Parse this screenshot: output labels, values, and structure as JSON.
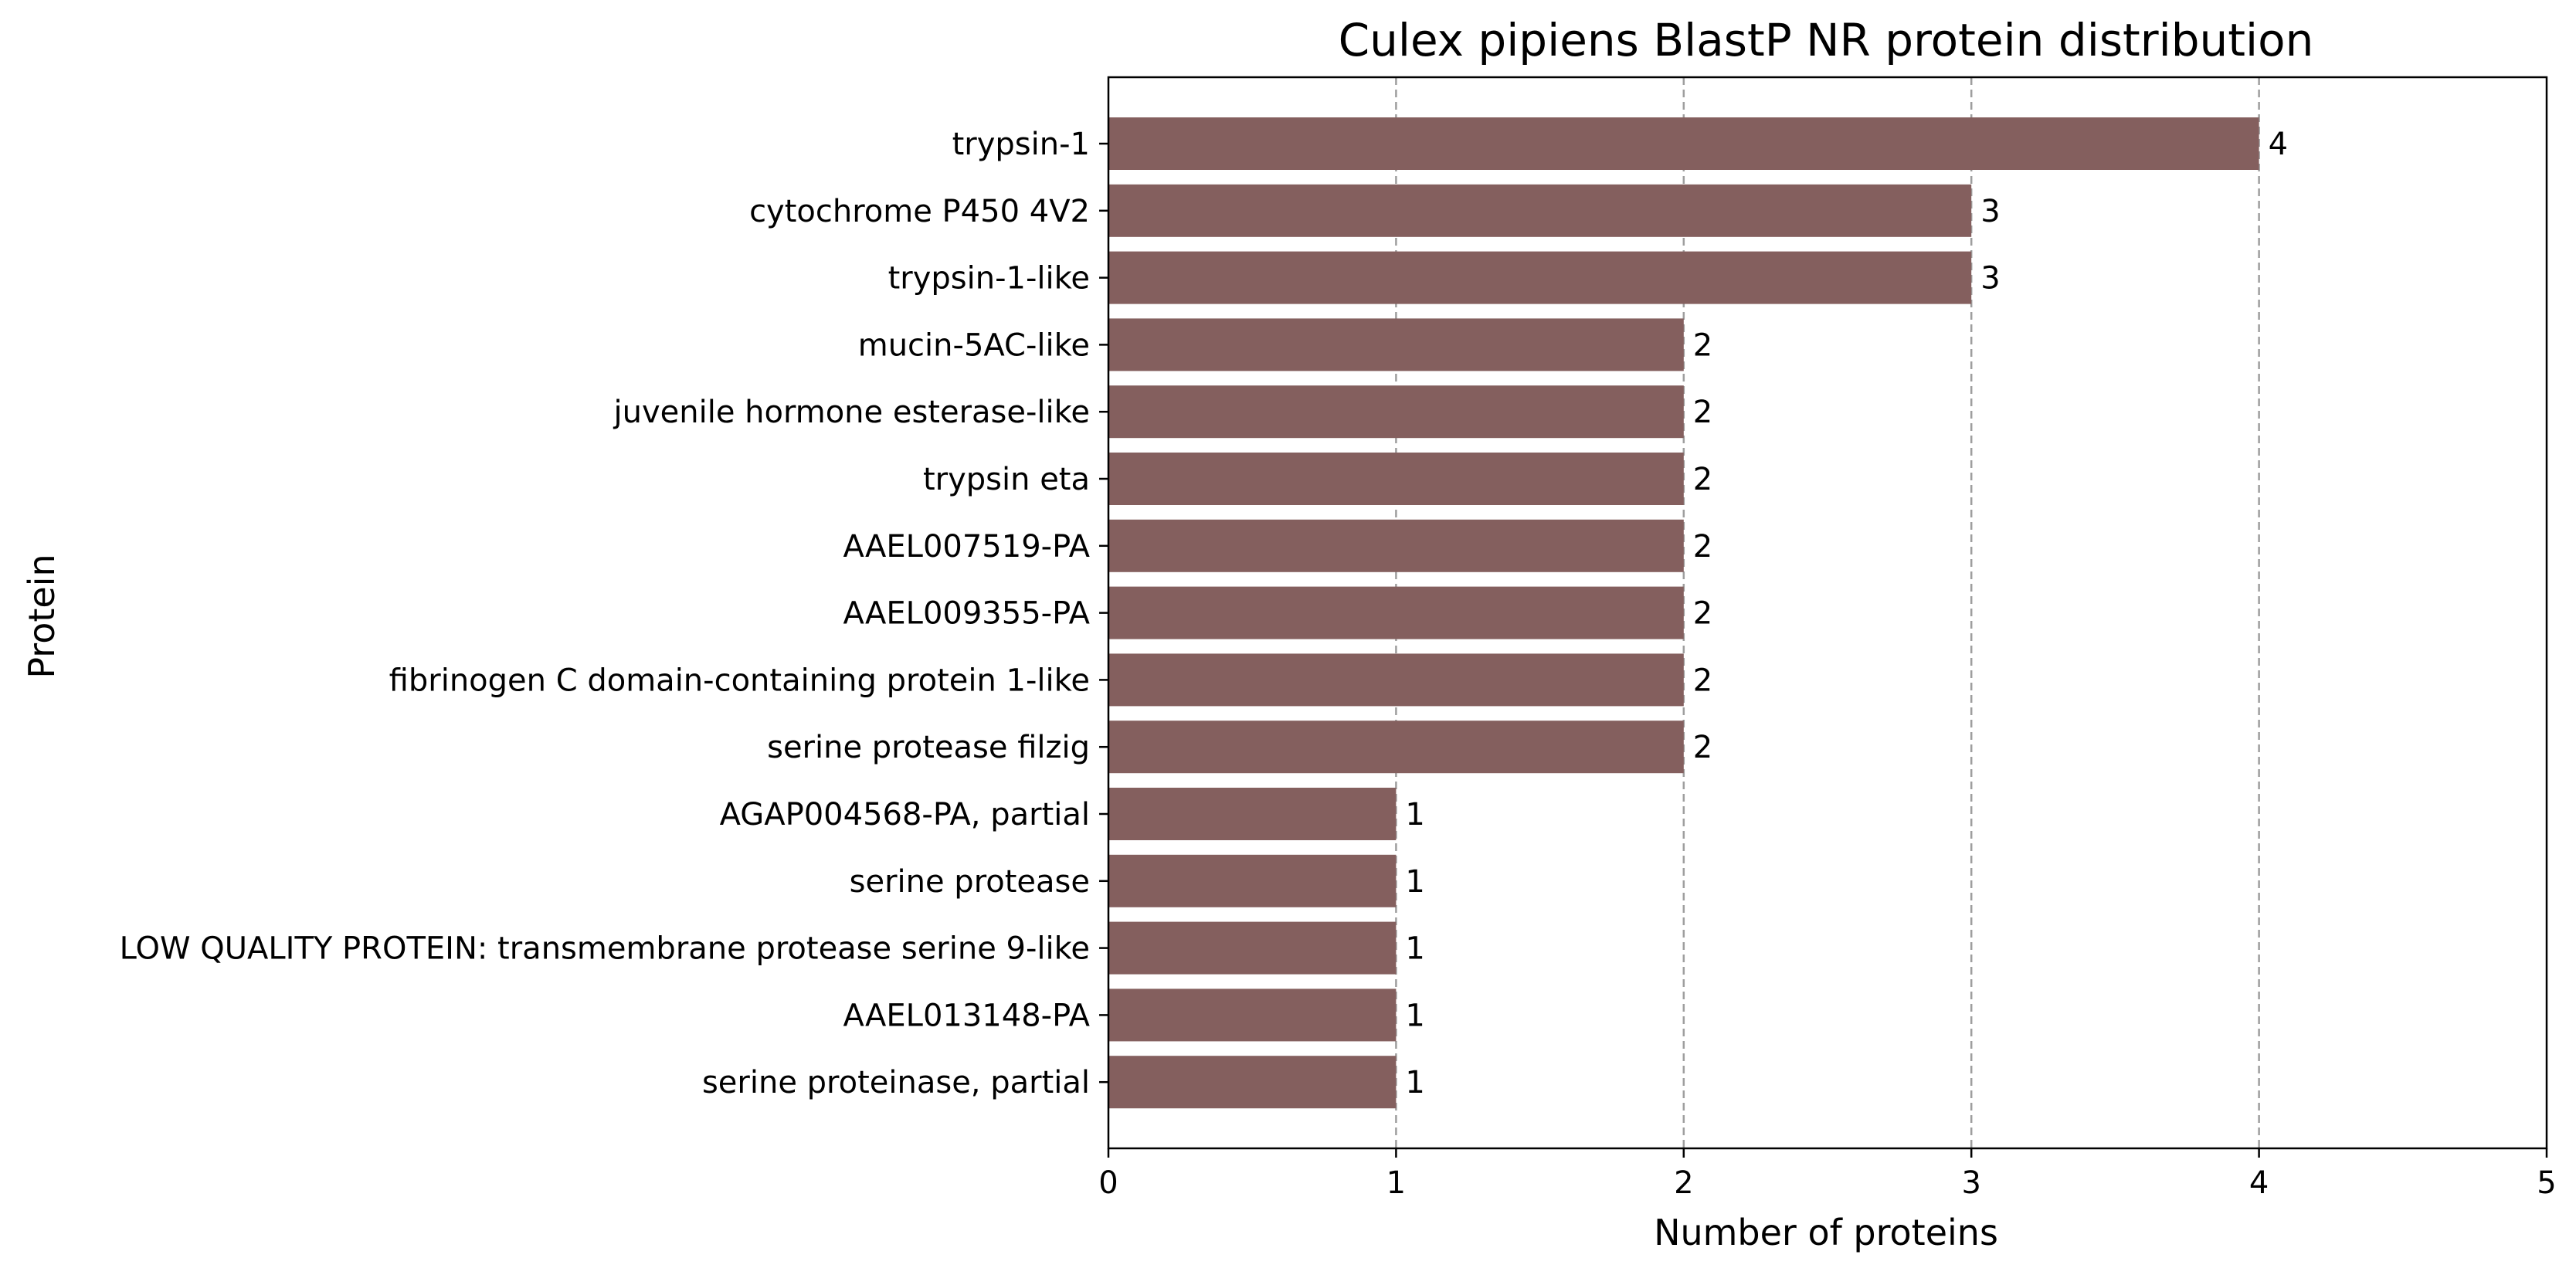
{
  "chart_data": {
    "type": "bar",
    "orientation": "horizontal",
    "title": "Culex pipiens BlastP NR protein distribution",
    "xlabel": "Number of proteins",
    "ylabel": "Protein",
    "xlim": [
      0,
      5
    ],
    "xticks": [
      "0",
      "1",
      "2",
      "3",
      "4",
      "5"
    ],
    "grid": "x-dashed",
    "bar_color": "#845f5e",
    "grid_color": "#9e9e9e",
    "categories": [
      "trypsin-1",
      "cytochrome P450 4V2",
      "trypsin-1-like",
      "mucin-5AC-like",
      "juvenile hormone esterase-like",
      "trypsin eta",
      "AAEL007519-PA",
      "AAEL009355-PA",
      "fibrinogen C domain-containing protein 1-like",
      "serine protease filzig",
      "AGAP004568-PA, partial",
      "serine protease",
      "LOW QUALITY PROTEIN: transmembrane protease serine 9-like",
      "AAEL013148-PA",
      "serine proteinase, partial"
    ],
    "values": [
      4,
      3,
      3,
      2,
      2,
      2,
      2,
      2,
      2,
      2,
      1,
      1,
      1,
      1,
      1
    ],
    "data_labels": [
      "4",
      "3",
      "3",
      "2",
      "2",
      "2",
      "2",
      "2",
      "2",
      "2",
      "1",
      "1",
      "1",
      "1",
      "1"
    ]
  }
}
